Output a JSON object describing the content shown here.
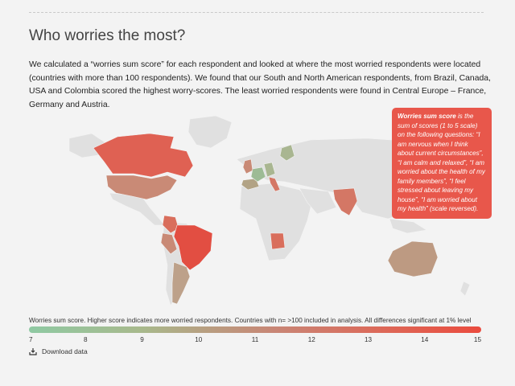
{
  "heading": "Who worries the most?",
  "intro": "We calculated a “worries sum score” for each respondent and looked at where the most worried respondents were located (countries with more than 100 respondents). We found that our South and North American respondents, from Brazil, Canada, USA and Colombia scored the highest worry-scores. The least worried respondents were found in Central Europe – France, Germany and Austria.",
  "tooltip": {
    "term": "Worries sum score",
    "text": " is the sum of scores (1 to 5 scale) on the following questions: “I am nervous when I think about current circumstances”, “I am calm and relaxed”, “I am worried about the health of my family members”, “I feel stressed about leaving my house”, “I am worried about my health” (scale reversed)."
  },
  "legend": {
    "caption": "Worries sum score. Higher score indicates more worried respondents. Countries with n= >100 included in analysis. All differences significant at 1% level",
    "ticks": [
      "7",
      "8",
      "9",
      "10",
      "11",
      "12",
      "13",
      "14",
      "15"
    ]
  },
  "download_label": "Download data",
  "colors": {
    "base_land": "#e0e0e0",
    "highest": "#ea4b3e",
    "lowest": "#8fc9a3"
  }
}
